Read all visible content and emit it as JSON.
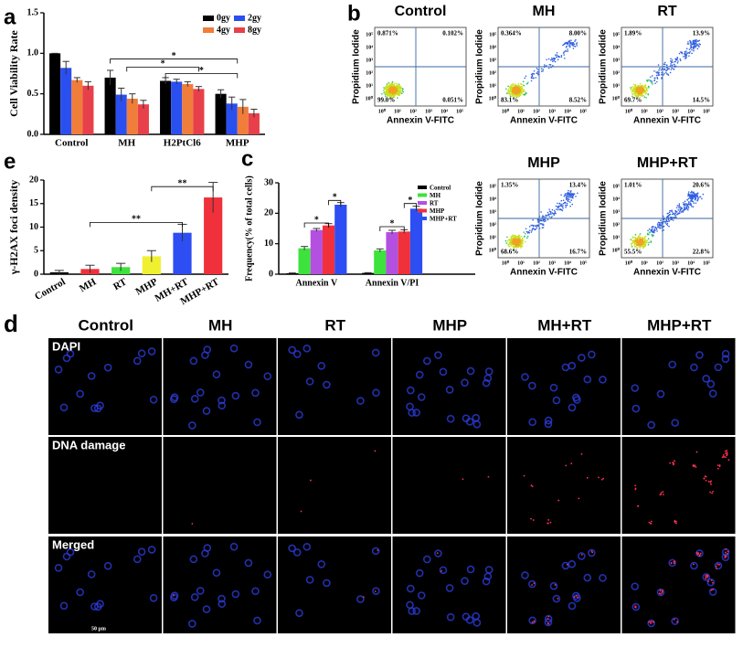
{
  "chart_data": [
    {
      "type": "bar",
      "panel": "a",
      "ylabel": "Cell Viability Rate",
      "categories": [
        "Control",
        "MH",
        "H2PtCl6",
        "MHP"
      ],
      "series": [
        {
          "name": "0gy",
          "color": "#000000",
          "values": [
            1.0,
            0.7,
            0.66,
            0.5
          ],
          "errors": [
            0.0,
            0.09,
            0.04,
            0.05
          ]
        },
        {
          "name": "2gy",
          "color": "#2a4ff0",
          "values": [
            0.82,
            0.49,
            0.65,
            0.38
          ],
          "errors": [
            0.08,
            0.08,
            0.03,
            0.08
          ]
        },
        {
          "name": "4gy",
          "color": "#f07d3a",
          "values": [
            0.67,
            0.44,
            0.62,
            0.34
          ],
          "errors": [
            0.03,
            0.06,
            0.03,
            0.09
          ]
        },
        {
          "name": "8gy",
          "color": "#e8404a",
          "values": [
            0.6,
            0.37,
            0.56,
            0.26
          ],
          "errors": [
            0.05,
            0.05,
            0.03,
            0.05
          ]
        }
      ],
      "ylim": [
        0,
        1.5
      ],
      "yticks": [
        {
          "value": 0,
          "label": "0.0"
        },
        0.5,
        {
          "value": 1,
          "label": "1.0"
        },
        1.5
      ],
      "annotations": [
        "*",
        "*",
        "*"
      ]
    },
    {
      "type": "bar",
      "panel": "c",
      "ylabel": "Frequency(% of total cells)",
      "categories": [
        "Annexin V",
        "Annexin V/PI"
      ],
      "series": [
        {
          "name": "Control",
          "color": "#000000",
          "values": [
            0.3,
            0.4
          ],
          "errors": [
            0.1,
            0.1
          ]
        },
        {
          "name": "MH",
          "color": "#3de23d",
          "values": [
            8.5,
            7.8
          ],
          "errors": [
            0.6,
            0.5
          ]
        },
        {
          "name": "RT",
          "color": "#b450e0",
          "values": [
            14.5,
            13.8
          ],
          "errors": [
            0.5,
            0.6
          ]
        },
        {
          "name": "MHP",
          "color": "#f0303a",
          "values": [
            16.0,
            14.0
          ],
          "errors": [
            0.6,
            0.6
          ]
        },
        {
          "name": "MHP+RT",
          "color": "#2d4ef2",
          "values": [
            22.8,
            21.5
          ],
          "errors": [
            0.7,
            0.8
          ]
        }
      ],
      "ylim": [
        0,
        30
      ],
      "yticks": [
        0,
        10,
        20,
        30
      ],
      "annotations": [
        "*",
        "*",
        "*",
        "*"
      ]
    },
    {
      "type": "bar",
      "panel": "e",
      "ylabel": "γ-H2AX foci density",
      "categories": [
        "Control",
        "MH",
        "RT",
        "MHP",
        "MH+RT",
        "MHP+RT"
      ],
      "values": [
        0.4,
        1.1,
        1.5,
        3.8,
        8.8,
        16.3
      ],
      "errors": [
        0.4,
        0.8,
        0.8,
        1.2,
        1.8,
        3.2
      ],
      "colors": [
        "#000000",
        "#f0303a",
        "#3de23d",
        "#f0f030",
        "#2d4ef2",
        "#f0303a"
      ],
      "ylim": [
        0,
        20
      ],
      "yticks": [
        0,
        5,
        10,
        15,
        20
      ],
      "annotations": [
        "**",
        "**"
      ]
    }
  ],
  "flow_cytometry": {
    "panel": "b",
    "x_label": "Annexin V-FITC",
    "y_label": "Propidium Iodide",
    "ticks": [
      "10⁰",
      "10¹",
      "10²",
      "10³",
      "10⁴",
      "10⁵"
    ],
    "plots": [
      {
        "title": "Control",
        "quadrants": [
          "0.871%",
          "0.102%",
          "99.0%",
          "0.051%"
        ]
      },
      {
        "title": "MH",
        "quadrants": [
          "0.364%",
          "8.00%",
          "83.1%",
          "8.52%"
        ]
      },
      {
        "title": "RT",
        "quadrants": [
          "1.89%",
          "13.9%",
          "69.7%",
          "14.5%"
        ]
      },
      {
        "title": "MHP",
        "quadrants": [
          "1.35%",
          "13.4%",
          "68.6%",
          "16.7%"
        ]
      },
      {
        "title": "MHP+RT",
        "quadrants": [
          "1.01%",
          "20.6%",
          "55.5%",
          "22.8%"
        ]
      }
    ]
  },
  "microscopy": {
    "panel": "d",
    "columns": [
      "Control",
      "MH",
      "RT",
      "MHP",
      "MH+RT",
      "MHP+RT"
    ],
    "rows": [
      "DAPI",
      "DNA damage",
      "Merged"
    ],
    "scale_bar": "50 μm"
  }
}
